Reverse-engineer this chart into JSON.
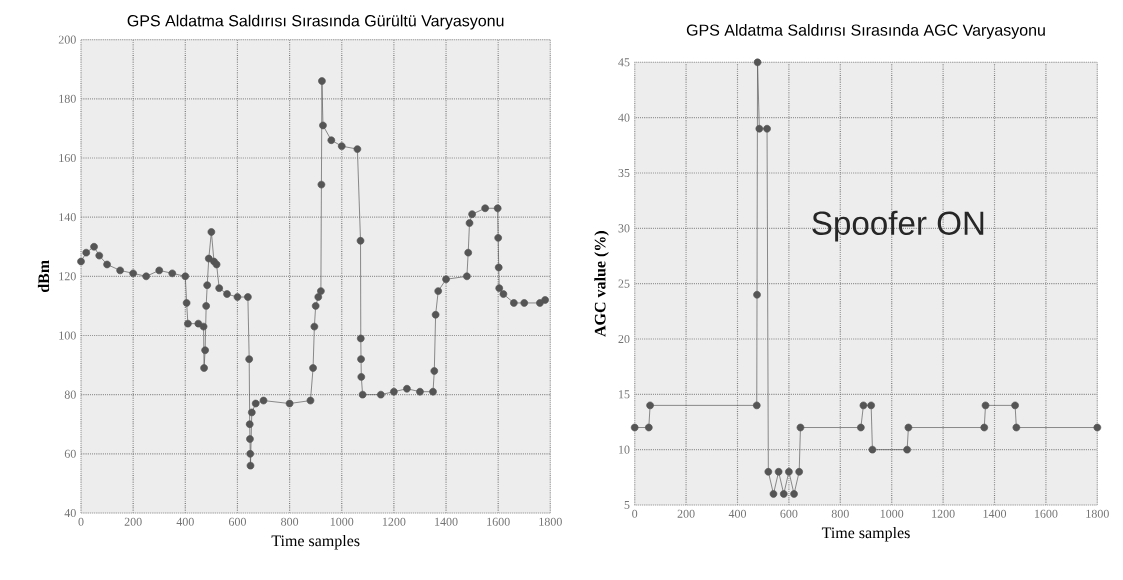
{
  "chart_data": [
    {
      "type": "line",
      "title": "GPS Aldatma Saldırısı Sırasında  Gürültü Varyasyonu",
      "xlabel": "Time samples",
      "ylabel": "dBm",
      "color": "#555555",
      "marker": "circle",
      "grid": true,
      "xlim": [
        0,
        1800
      ],
      "ylim": [
        40,
        200
      ],
      "xticks": [
        0,
        200,
        400,
        600,
        800,
        1000,
        1200,
        1400,
        1600,
        1800
      ],
      "yticks": [
        40,
        60,
        80,
        100,
        120,
        140,
        160,
        180,
        200
      ],
      "x": [
        0,
        20,
        50,
        70,
        100,
        150,
        200,
        250,
        300,
        350,
        400,
        405,
        410,
        450,
        470,
        472,
        476,
        480,
        484,
        490,
        500,
        510,
        520,
        530,
        560,
        600,
        640,
        645,
        647,
        648,
        649,
        650,
        655,
        670,
        700,
        800,
        880,
        890,
        895,
        900,
        910,
        920,
        922,
        924,
        928,
        960,
        1000,
        1060,
        1072,
        1073,
        1074,
        1075,
        1080,
        1150,
        1200,
        1250,
        1300,
        1350,
        1355,
        1360,
        1370,
        1400,
        1480,
        1485,
        1490,
        1500,
        1550,
        1598,
        1600,
        1602,
        1604,
        1620,
        1660,
        1700,
        1760,
        1780
      ],
      "values": [
        125,
        128,
        130,
        127,
        124,
        122,
        121,
        120,
        122,
        121,
        120,
        111,
        104,
        104,
        103,
        89,
        95,
        110,
        117,
        126,
        135,
        125,
        124,
        116,
        114,
        113,
        113,
        92,
        70,
        65,
        60,
        56,
        74,
        77,
        78,
        77,
        78,
        89,
        103,
        110,
        113,
        115,
        151,
        186,
        171,
        166,
        164,
        163,
        132,
        99,
        92,
        86,
        80,
        80,
        81,
        82,
        81,
        81,
        88,
        107,
        115,
        119,
        120,
        128,
        138,
        141,
        143,
        143,
        133,
        123,
        116,
        114,
        111,
        111,
        111,
        112
      ]
    },
    {
      "type": "line",
      "title": "GPS Aldatma Saldırısı Sırasında AGC Varyasyonu",
      "xlabel": "Time samples",
      "ylabel": "AGC value (%)",
      "color": "#555555",
      "marker": "circle",
      "grid": true,
      "xlim": [
        0,
        1800
      ],
      "ylim": [
        5,
        45
      ],
      "xticks": [
        0,
        200,
        400,
        600,
        800,
        1000,
        1200,
        1400,
        1600,
        1800
      ],
      "yticks": [
        5,
        10,
        15,
        20,
        25,
        30,
        35,
        40,
        45
      ],
      "annotations": [
        "Spoofer ON"
      ],
      "x": [
        0,
        55,
        60,
        475,
        476,
        478,
        485,
        515,
        520,
        540,
        560,
        580,
        600,
        620,
        640,
        645,
        880,
        890,
        920,
        925,
        1060,
        1065,
        1360,
        1365,
        1480,
        1485,
        1800
      ],
      "values": [
        12,
        12,
        14,
        14,
        24,
        45,
        39,
        39,
        8,
        6,
        8,
        6,
        8,
        6,
        8,
        12,
        12,
        14,
        14,
        10,
        10,
        12,
        12,
        14,
        14,
        12,
        12
      ]
    }
  ]
}
